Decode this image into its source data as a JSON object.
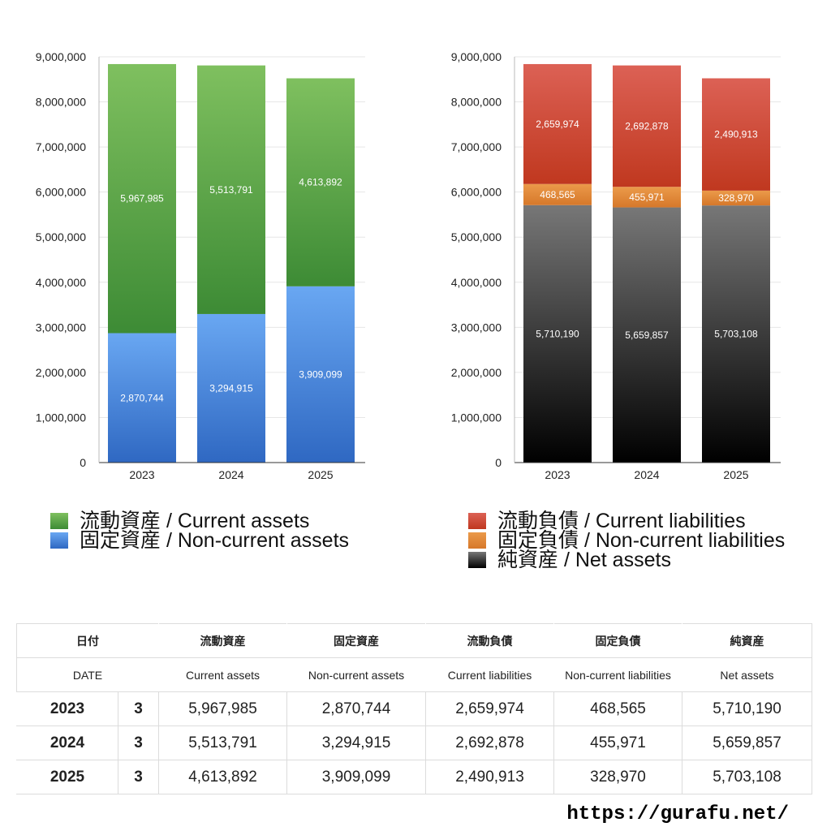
{
  "chart_data": [
    {
      "type": "bar",
      "stacked": true,
      "categories": [
        "2023",
        "2024",
        "2025"
      ],
      "ylim": [
        0,
        9000000
      ],
      "yticks": [
        0,
        1000000,
        2000000,
        3000000,
        4000000,
        5000000,
        6000000,
        7000000,
        8000000,
        9000000
      ],
      "ytick_labels": [
        "0",
        "1,000,000",
        "2,000,000",
        "3,000,000",
        "4,000,000",
        "5,000,000",
        "6,000,000",
        "7,000,000",
        "8,000,000",
        "9,000,000"
      ],
      "grid": true,
      "series": [
        {
          "name": "固定資産 / Non-current assets",
          "values": [
            2870744,
            3294915,
            3909099
          ],
          "labels": [
            "2,870,744",
            "3,294,915",
            "3,909,099"
          ],
          "color_top": "#69a7f2",
          "color_bottom": "#2f68c2"
        },
        {
          "name": "流動資産 / Current assets",
          "values": [
            5967985,
            5513791,
            4613892
          ],
          "labels": [
            "5,967,985",
            "5,513,791",
            "4,613,892"
          ],
          "color_top": "#7fc05f",
          "color_bottom": "#3d8b35"
        }
      ]
    },
    {
      "type": "bar",
      "stacked": true,
      "categories": [
        "2023",
        "2024",
        "2025"
      ],
      "ylim": [
        0,
        9000000
      ],
      "yticks": [
        0,
        1000000,
        2000000,
        3000000,
        4000000,
        5000000,
        6000000,
        7000000,
        8000000,
        9000000
      ],
      "ytick_labels": [
        "0",
        "1,000,000",
        "2,000,000",
        "3,000,000",
        "4,000,000",
        "5,000,000",
        "6,000,000",
        "7,000,000",
        "8,000,000",
        "9,000,000"
      ],
      "grid": true,
      "series": [
        {
          "name": "純資産 / Net assets",
          "values": [
            5710190,
            5659857,
            5703108
          ],
          "labels": [
            "5,710,190",
            "5,659,857",
            "5,703,108"
          ],
          "color_top": "#777777",
          "color_bottom": "#000000"
        },
        {
          "name": "固定負債 / Non-current liabilities",
          "values": [
            468565,
            455971,
            328970
          ],
          "labels": [
            "468,565",
            "455,971",
            "328,970"
          ],
          "color_top": "#eb9a4a",
          "color_bottom": "#d6782a"
        },
        {
          "name": "流動負債 / Current liabilities",
          "values": [
            2659974,
            2692878,
            2490913
          ],
          "labels": [
            "2,659,974",
            "2,692,878",
            "2,490,913"
          ],
          "color_top": "#dc6155",
          "color_bottom": "#c0381f"
        }
      ]
    }
  ],
  "legend_assets": [
    {
      "label": "流動資産 / Current assets",
      "color": "#56a245"
    },
    {
      "label": "固定資産 / Non-current assets",
      "color": "#4a8fe0"
    }
  ],
  "legend_liabilities": [
    {
      "label": "流動負債 / Current liabilities",
      "color": "#d04a3a"
    },
    {
      "label": "固定負債 / Non-current liabilities",
      "color": "#e58a3a"
    },
    {
      "label": "純資産 / Net assets",
      "color": "#222222"
    }
  ],
  "table": {
    "header_jp": [
      "日付",
      "流動資産",
      "固定資産",
      "流動負債",
      "固定負債",
      "純資産"
    ],
    "header_en": [
      "DATE",
      "Current assets",
      "Non-current assets",
      "Current liabilities",
      "Non-current liabilities",
      "Net assets"
    ],
    "rows": [
      {
        "year": "2023",
        "count": "3",
        "values": [
          "5,967,985",
          "2,870,744",
          "2,659,974",
          "468,565",
          "5,710,190"
        ]
      },
      {
        "year": "2024",
        "count": "3",
        "values": [
          "5,513,791",
          "3,294,915",
          "2,692,878",
          "455,971",
          "5,659,857"
        ]
      },
      {
        "year": "2025",
        "count": "3",
        "values": [
          "4,613,892",
          "3,909,099",
          "2,490,913",
          "328,970",
          "5,703,108"
        ]
      }
    ]
  },
  "source_url": "https://gurafu.net/"
}
